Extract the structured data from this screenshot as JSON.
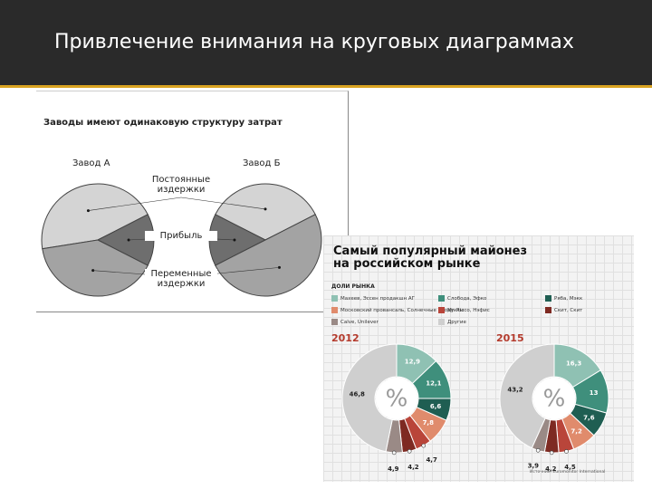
{
  "slide": {
    "title": "Привлечение внимания на круговых диаграммах"
  },
  "chart_data": [
    {
      "type": "pie",
      "title": "Заводы имеют одинаковую структуру затрат",
      "slice_labels": [
        "Постоянные издержки",
        "Прибыль",
        "Переменные издержки"
      ],
      "colors": [
        "#d4d4d4",
        "#6e6e6e",
        "#a3a3a3"
      ],
      "pies": [
        {
          "name": "Завод А",
          "values": [
            45,
            15,
            40
          ]
        },
        {
          "name": "Завод Б",
          "values": [
            35,
            15,
            50
          ]
        }
      ]
    },
    {
      "type": "donut",
      "title": "Самый популярный майонез на российском рынке",
      "subtitle": "ДОЛИ РЫНКА",
      "series_names": [
        "Махеев, Эссен продакшн АГ",
        "Слобода, Эфко",
        "Ряба, Мэкк",
        "Московский провансаль, Солнечные продукты",
        "Mr. Ricco, Нэфис",
        "Скит, Скит",
        "Calve, Unilever",
        "Другие"
      ],
      "colors": [
        "#8fc1b3",
        "#3f8f7c",
        "#1f5e52",
        "#e08b6c",
        "#b9453a",
        "#7e2a22",
        "#9a8a86",
        "#cfcfcf"
      ],
      "center_label": "%",
      "pies": [
        {
          "name": "2012",
          "values": [
            12.9,
            12.1,
            6.6,
            7.8,
            4.7,
            4.2,
            4.9,
            46.8
          ],
          "value_labels": [
            "12,9",
            "12,1",
            "6,6",
            "7,8",
            "4,7",
            "4,2",
            "4,9",
            "46,8"
          ]
        },
        {
          "name": "2015",
          "values": [
            16.3,
            13,
            7.6,
            7.2,
            4.5,
            4.2,
            3.9,
            43.2
          ],
          "value_labels": [
            "16,3",
            "13",
            "7,6",
            "7,2",
            "4,5",
            "4,2",
            "3,9",
            "43,2"
          ]
        }
      ],
      "source": "Источник: Euromonitor International"
    }
  ]
}
